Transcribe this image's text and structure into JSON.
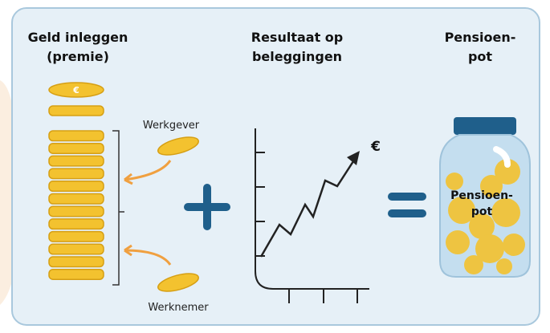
{
  "columns": [
    {
      "title": [
        "Geld inleggen",
        "(premie)"
      ]
    },
    {
      "title": [
        "Resultaat op",
        "beleggingen"
      ]
    },
    {
      "title": [
        "Pensioen-",
        "pot"
      ]
    }
  ],
  "contributors": [
    "Werkgever",
    "Werknemer"
  ],
  "coin_symbol": "€",
  "graph": {
    "label": "€"
  },
  "jar": {
    "label": [
      "Pensioen-",
      "pot"
    ]
  }
}
